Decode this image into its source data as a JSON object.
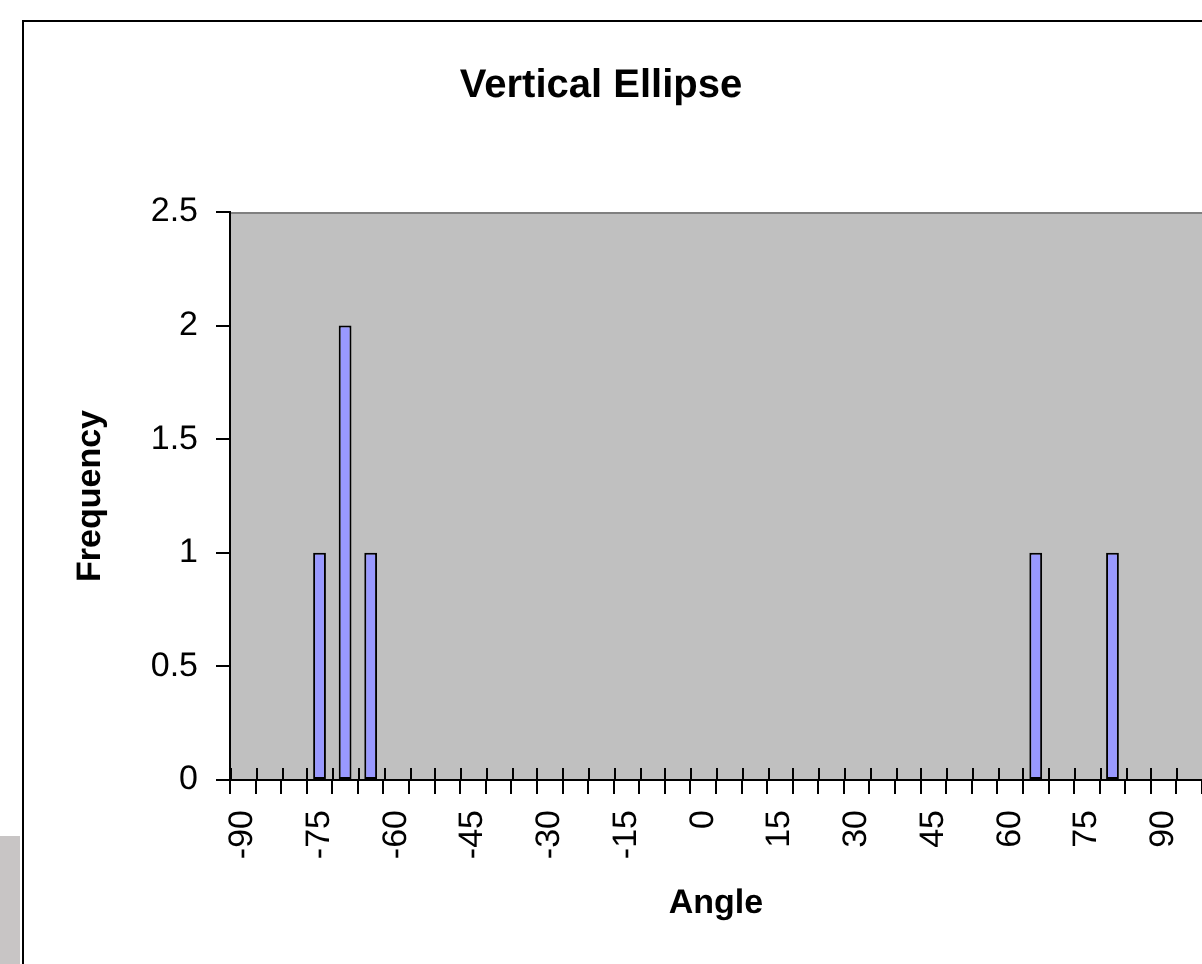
{
  "chart_data": {
    "type": "bar",
    "title": "Vertical Ellipse",
    "xlabel": "Angle",
    "ylabel": "Frequency",
    "categories": [
      "-90",
      null,
      null,
      "-75",
      null,
      null,
      "-60",
      null,
      null,
      "-45",
      null,
      null,
      "-30",
      null,
      null,
      "-15",
      null,
      null,
      "0",
      null,
      null,
      "15",
      null,
      null,
      "30",
      null,
      null,
      "45",
      null,
      null,
      "60",
      null,
      null,
      "75",
      null,
      null,
      "90",
      null
    ],
    "values": [
      0,
      0,
      0,
      1,
      2,
      1,
      0,
      0,
      0,
      0,
      0,
      0,
      0,
      0,
      0,
      0,
      0,
      0,
      0,
      0,
      0,
      0,
      0,
      0,
      0,
      0,
      0,
      0,
      0,
      0,
      0,
      1,
      0,
      0,
      1,
      0,
      0,
      0
    ],
    "color": "#9999ff",
    "ylim": [
      0,
      2.5
    ],
    "yticks": [
      0,
      0.5,
      1,
      1.5,
      2,
      2.5
    ]
  }
}
